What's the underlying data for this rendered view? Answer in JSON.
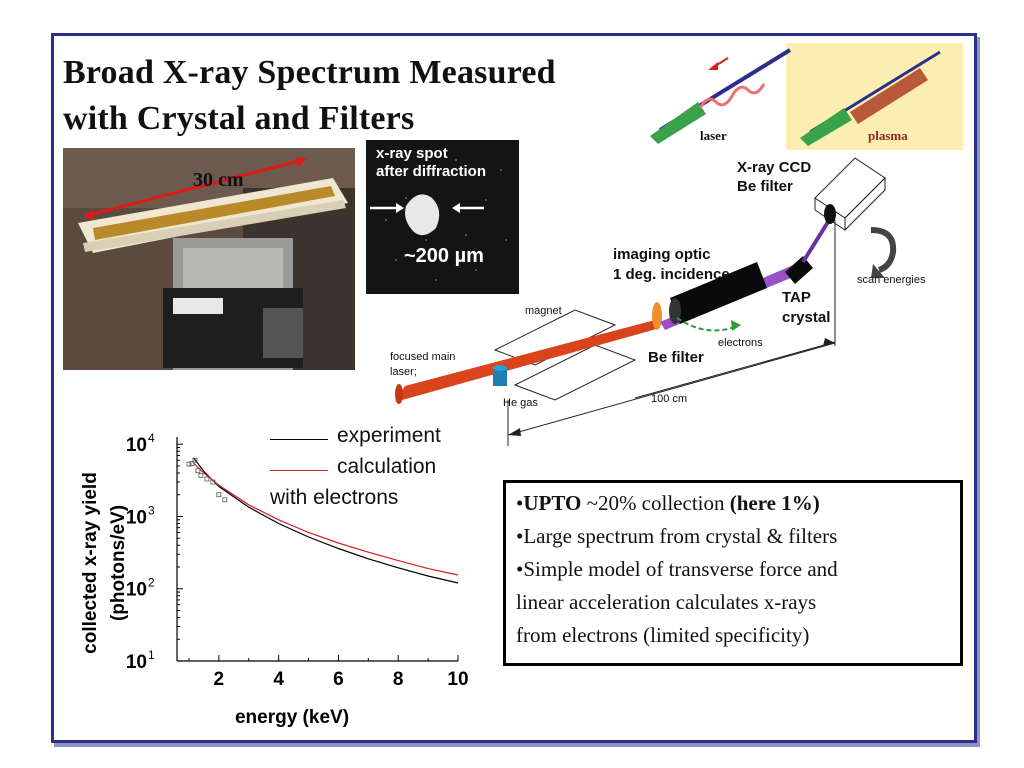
{
  "slide": {
    "title_line1": "Broad X-ray Spectrum Measured",
    "title_line2": "with Crystal and Filters",
    "photo_label": "30 cm",
    "spot_label_line1": "x-ray spot",
    "spot_label_line2": "after diffraction",
    "spot_size": "~200 µm",
    "inset_laser": "laser",
    "inset_plasma": "plasma"
  },
  "setup": {
    "ccd_line1": "X-ray CCD",
    "ccd_line2": "Be filter",
    "scan": "scan energies",
    "optic_line1": "imaging optic",
    "optic_line2": "1 deg. incidence",
    "tap_line1": "TAP",
    "tap_line2": "crystal",
    "magnet": "magnet",
    "be_filter": "Be filter",
    "electrons": "electrons",
    "laser_line1": "focused main",
    "laser_line2": "laser;",
    "he_gas": "He gas",
    "distance": "100 cm"
  },
  "chart_data": {
    "type": "line",
    "xlabel": "energy (keV)",
    "ylabel_line1": "collected x-ray yield",
    "ylabel_line2": "(photons/eV)",
    "xlim": [
      0.6,
      10
    ],
    "ylim_log10": [
      1,
      4.1
    ],
    "x_ticks": [
      2,
      4,
      6,
      8,
      10
    ],
    "y_ticks": [
      {
        "base": "10",
        "exp": "4",
        "log": 4
      },
      {
        "base": "10",
        "exp": "3",
        "log": 3
      },
      {
        "base": "10",
        "exp": "2",
        "log": 2
      },
      {
        "base": "10",
        "exp": "1",
        "log": 1
      }
    ],
    "legend": [
      {
        "label": "experiment",
        "color": "#000000"
      },
      {
        "label": "calculation",
        "color": "#d42020"
      },
      {
        "label": "with electrons",
        "color": ""
      }
    ],
    "series": [
      {
        "name": "experiment",
        "color": "#000000",
        "x": [
          1.15,
          1.5,
          2,
          3,
          4,
          5,
          6,
          7,
          8,
          9,
          10
        ],
        "y": [
          6500,
          4200,
          2600,
          1350,
          800,
          520,
          360,
          260,
          195,
          150,
          120
        ]
      },
      {
        "name": "calculation",
        "color": "#d42020",
        "x": [
          1.15,
          1.5,
          2,
          3,
          4,
          5,
          6,
          7,
          8,
          9,
          10
        ],
        "y": [
          5500,
          4000,
          2700,
          1450,
          900,
          600,
          430,
          320,
          245,
          190,
          155
        ]
      }
    ],
    "markers": {
      "x": [
        1.0,
        1.1,
        1.2,
        1.3,
        1.4,
        1.6,
        1.8,
        2.0,
        2.2
      ],
      "y": [
        5300,
        5400,
        6000,
        4300,
        3700,
        3300,
        3000,
        2000,
        1700
      ]
    }
  },
  "bullets": {
    "b1_prefix": "•",
    "b1_bold": "UPTO",
    "b1_mid": " ~20% collection ",
    "b1_bold2": "(here 1%)",
    "b2": "•Large spectrum from crystal & filters",
    "b3": "•Simple model of transverse force and",
    "b3b": "linear acceleration calculates x-rays",
    "b3c": "from electrons (limited specificity)"
  },
  "colors": {
    "frame": "#2b2f8a",
    "laser": "#d9441c",
    "plasma_bg": "#fbeeb0"
  }
}
